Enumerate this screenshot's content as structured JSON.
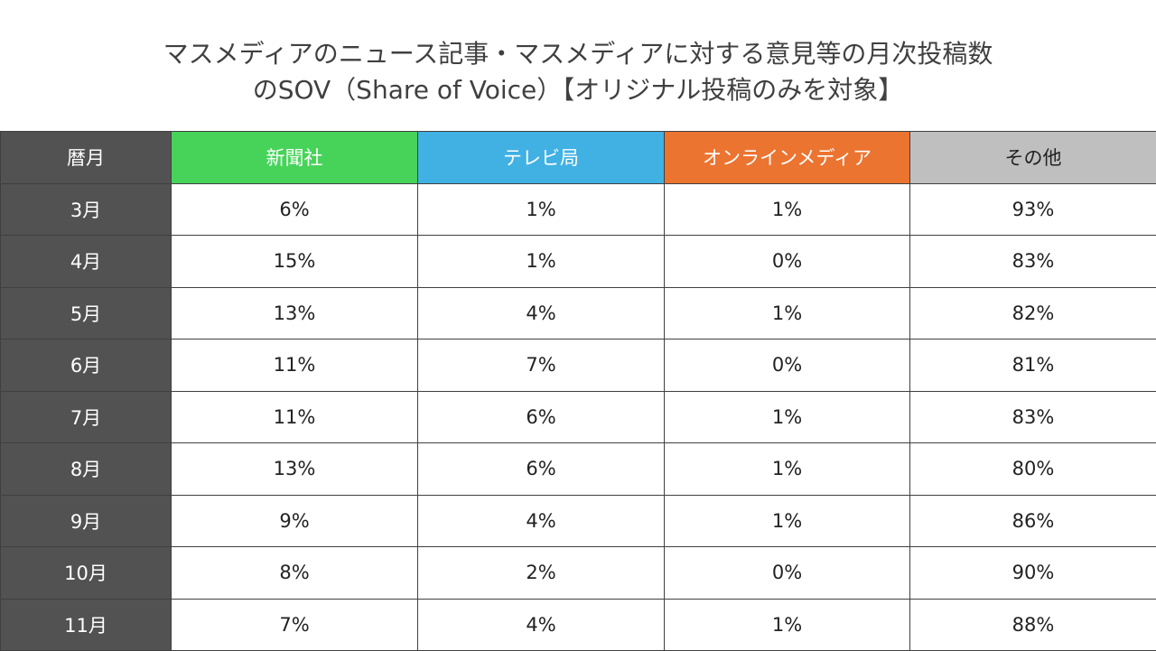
{
  "title": {
    "line1": "マスメディアのニュース記事・マスメディアに対する意見等の月次投稿数",
    "line2": "のSOV（Share of Voice）【オリジナル投稿のみを対象】"
  },
  "colors": {
    "month_header": "#525252",
    "newspaper": "#47d35a",
    "tv": "#41b1e3",
    "online": "#ec7431",
    "other": "#bfbfbf"
  },
  "chart_data": {
    "type": "table",
    "title": "マスメディアのニュース記事・マスメディアに対する意見等の月次投稿数のSOV（Share of Voice）【オリジナル投稿のみを対象】",
    "columns": [
      "暦月",
      "新聞社",
      "テレビ局",
      "オンラインメディア",
      "その他"
    ],
    "rows": [
      [
        "3月",
        "6%",
        "1%",
        "1%",
        "93%"
      ],
      [
        "4月",
        "15%",
        "1%",
        "0%",
        "83%"
      ],
      [
        "5月",
        "13%",
        "4%",
        "1%",
        "82%"
      ],
      [
        "6月",
        "11%",
        "7%",
        "0%",
        "81%"
      ],
      [
        "7月",
        "11%",
        "6%",
        "1%",
        "83%"
      ],
      [
        "8月",
        "13%",
        "6%",
        "1%",
        "80%"
      ],
      [
        "9月",
        "9%",
        "4%",
        "1%",
        "86%"
      ],
      [
        "10月",
        "8%",
        "2%",
        "0%",
        "90%"
      ],
      [
        "11月",
        "7%",
        "4%",
        "1%",
        "88%"
      ]
    ]
  }
}
